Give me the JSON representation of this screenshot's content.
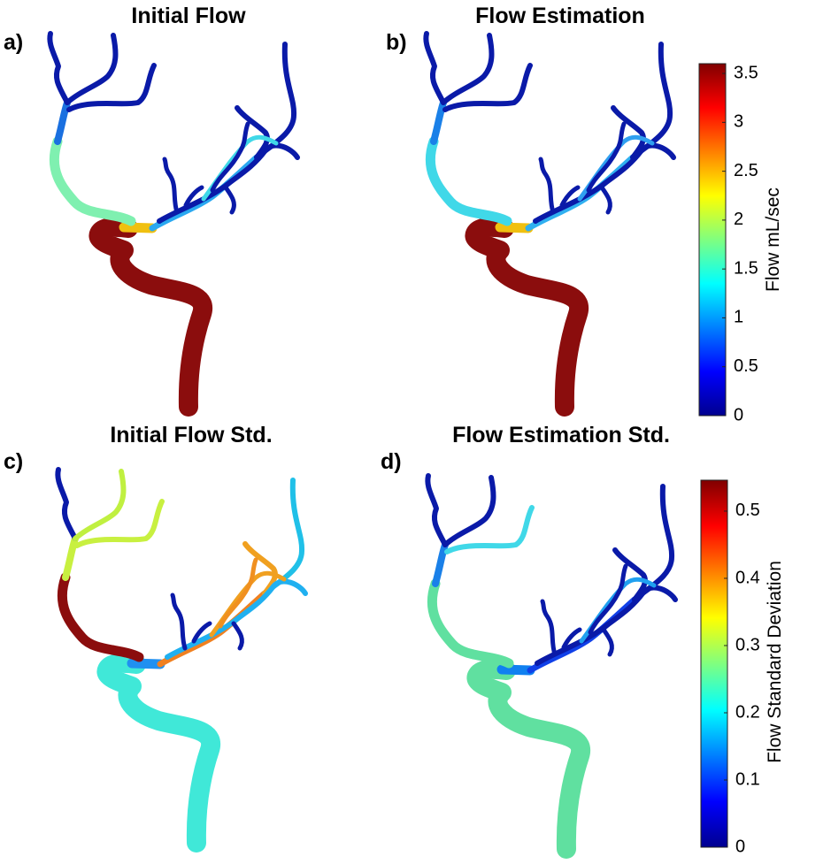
{
  "panels": [
    {
      "label": "a)",
      "title": "Initial Flow"
    },
    {
      "label": "b)",
      "title": "Flow Estimation"
    },
    {
      "label": "c)",
      "title": "Initial Flow Std."
    },
    {
      "label": "d)",
      "title": "Flow Estimation Std."
    }
  ],
  "colorbars": [
    {
      "label": "Flow mL/sec",
      "lim": [
        0,
        3.6
      ],
      "ticks": [
        0,
        0.5,
        1,
        1.5,
        2,
        2.5,
        3,
        3.5
      ]
    },
    {
      "label": "Flow Standard Deviation",
      "lim": [
        0,
        0.546
      ],
      "ticks": [
        0,
        0.1,
        0.2,
        0.3,
        0.4,
        0.5
      ]
    }
  ]
}
